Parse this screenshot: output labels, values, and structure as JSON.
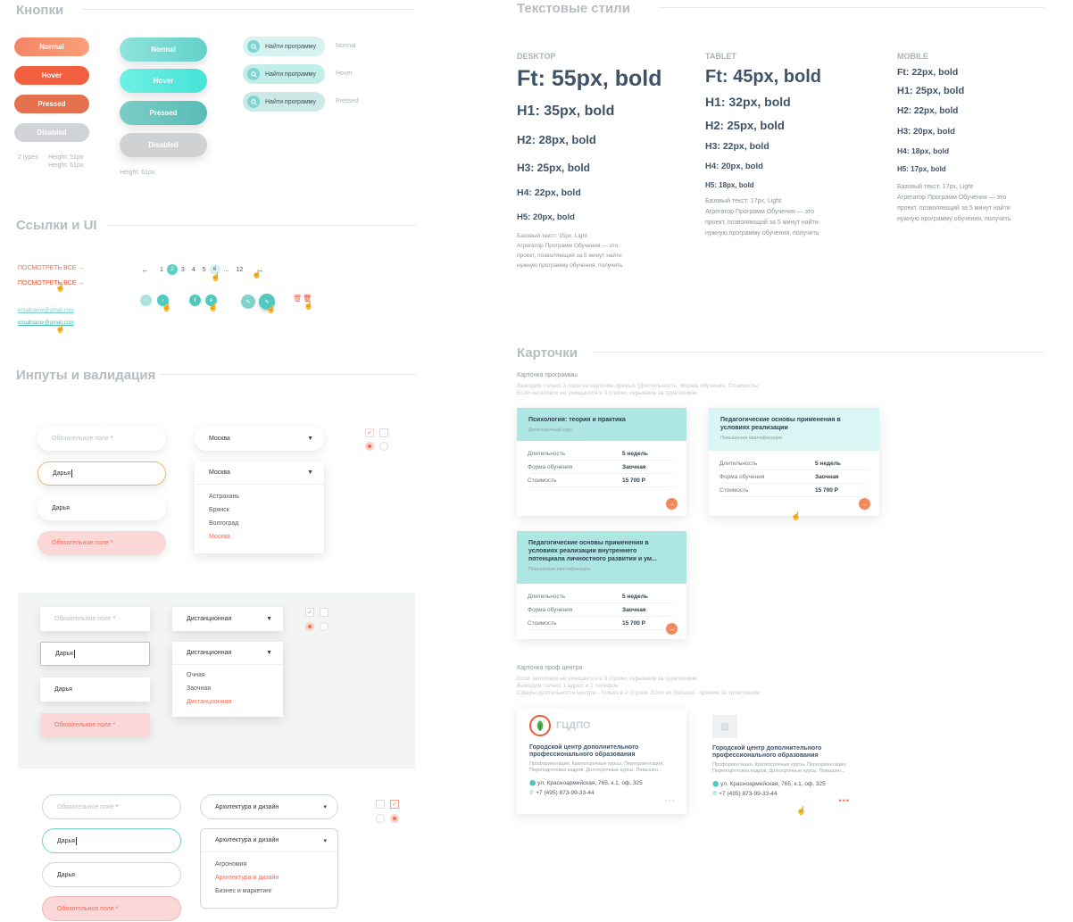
{
  "sections": {
    "buttons": "Кнопки",
    "links": "Ссылки и UI",
    "inputs": "Инпуты и валидация",
    "text_styles": "Текстовые стили",
    "cards": "Карточки"
  },
  "buttons": {
    "orange": [
      "Normal",
      "Hover",
      "Pressed",
      "Disabled"
    ],
    "orange_note_types": "2 types",
    "orange_note_h1": "Height: 51px",
    "orange_note_h2": "Height: 61px",
    "teal": [
      "Normal",
      "Hover",
      "Pressed",
      "Disabled"
    ],
    "teal_note": "Height: 61px",
    "search_label": "Найти программу",
    "search_states": [
      "Normal",
      "Hover",
      "Pressed"
    ]
  },
  "links": {
    "see_all": "ПОСМОТРЕТЬ ВСЕ →",
    "email": "emailname@gmail.com",
    "pagination": [
      "←",
      "1",
      "2",
      "3",
      "4",
      "5",
      "6",
      "...",
      "12",
      "→"
    ]
  },
  "inputs": {
    "placeholder": "Обязательное поле",
    "value": "Дарья",
    "group1": {
      "select": "Москва",
      "options": [
        "Астрахань",
        "Брянск",
        "Волгоград",
        "Москва"
      ]
    },
    "group2": {
      "select": "Дистанционная",
      "options": [
        "Очная",
        "Заочная",
        "Дистанционная"
      ]
    },
    "group3": {
      "select": "Архитектура и дизайн",
      "options": [
        "Агрономия",
        "Архитектура и дизайн",
        "Бизнес и маркетинг"
      ]
    }
  },
  "text_styles": {
    "desktop": {
      "head": "DESKTOP",
      "styles": [
        "Ft: 55px, bold",
        "H1: 35px, bold",
        "H2:  28px, bold",
        "H3:  25px, bold",
        "H4:  22px, bold",
        "H5:  20px, bold"
      ],
      "body": [
        "Базовый текст: 15px, Light",
        "Агрегатор Программ Обучения — это",
        "проект, позволяющий за 5 минут найти",
        "нужную программу обучения, получить"
      ]
    },
    "tablet": {
      "head": "TABLET",
      "styles": [
        "Ft: 45px, bold",
        "H1: 32px, bold",
        "H2:  25px, bold",
        "H3:  22px, bold",
        "H4:  20px, bold",
        "H5:  18px, bold"
      ],
      "body": [
        "Базовый текст: 17px, Light",
        "Агрегатор Программ Обучения — это",
        "проект, позволяющий за 5 минут найти",
        "нужную программу обучения, получить"
      ]
    },
    "mobile": {
      "head": "MOBILE",
      "styles": [
        "Ft: 22px, bold",
        "H1: 25px, bold",
        "H2:  22px, bold",
        "H3:  20px, bold",
        "H4:  18px, bold",
        "H5:  17px, bold"
      ],
      "body": [
        "Базовый текст: 17px, Light",
        "Агрегатор Программ Обучения — это",
        "проект, позволяющий за 5 минут найти",
        "нужную программу обучения, получить"
      ]
    }
  },
  "cards": {
    "program_label": "Карточка программы",
    "program_note1": "Выводим только 3 поля на карточке-превью (Длительность, Форма обучения, Стоимость)",
    "program_note2": "Если заголовок не умещается в 3 строки, скрываем за троеточием",
    "programs": [
      {
        "title": "Психология: теория и практика",
        "sub": "Долгосрочный курс"
      },
      {
        "title": "Педагогические основы применения в условиях реализации",
        "sub": "Повышение квалификации"
      },
      {
        "title": "Педагогические основы применения в условиях реализации внутреннего потенциала личностного развития и ум...",
        "sub": "Повышение квалификации"
      }
    ],
    "fields": {
      "duration": "Длительность",
      "form": "Форма обучения",
      "price": "Стоимость"
    },
    "values": {
      "duration": "5 недель",
      "form": "Заочная",
      "price": "15 700 Р"
    },
    "center_label": "Карточка проф центра",
    "center_note1": "Если заголовок не умещается в 3 строки, скрываем за троеточием",
    "center_note2": "Выводим только 1 адрес и 1 телефон",
    "center_note3": "Сферы деятельности центра - только в 2 строки. Если их больше - прячем за троеточием",
    "center_logo": "ГЦДПО",
    "center_title": "Городской центр дополнительного профессионального образования",
    "center_areas": "Профориентация, Краткосрочные курсы, Переориентация, Переподготовка кадров, Долгосрочные курсы, Повышен...",
    "center_address": "ул. Красноармейская, 765, к.1, оф. 325",
    "center_phone": "+7 (495) 873-99-33-44"
  },
  "colors": {
    "orange": "#f47c5e",
    "teal": "#6fd8d0",
    "accent_text": "#3f5468"
  }
}
